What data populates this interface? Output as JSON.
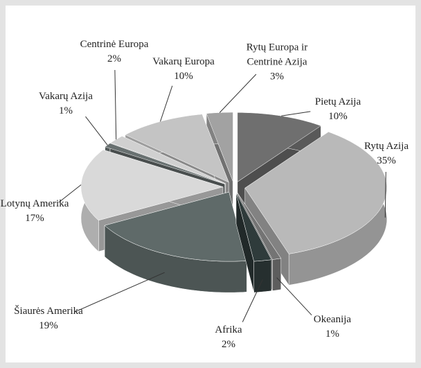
{
  "chart_data": {
    "type": "pie",
    "categories": [
      "Pietų Azija",
      "Rytų Azija",
      "Okeanija",
      "Afrika",
      "Šiaurės Amerika",
      "Lotynų Amerika",
      "Vakarų Azija",
      "Centrinė Europa",
      "Vakarų Europa",
      "Rytų Europa ir Centrinė Azija"
    ],
    "values": [
      10,
      35,
      1,
      2,
      19,
      17,
      1,
      2,
      10,
      3
    ],
    "value_labels": [
      "10%",
      "35%",
      "1%",
      "2%",
      "19%",
      "17%",
      "1%",
      "2%",
      "10%",
      "3%"
    ],
    "colors": [
      "#6f6f6f",
      "#b9b9b9",
      "#747474",
      "#2f3b3b",
      "#5f6a69",
      "#d9d9d9",
      "#687070",
      "#d0d0d0",
      "#c4c4c4",
      "#a2a2a2"
    ]
  }
}
